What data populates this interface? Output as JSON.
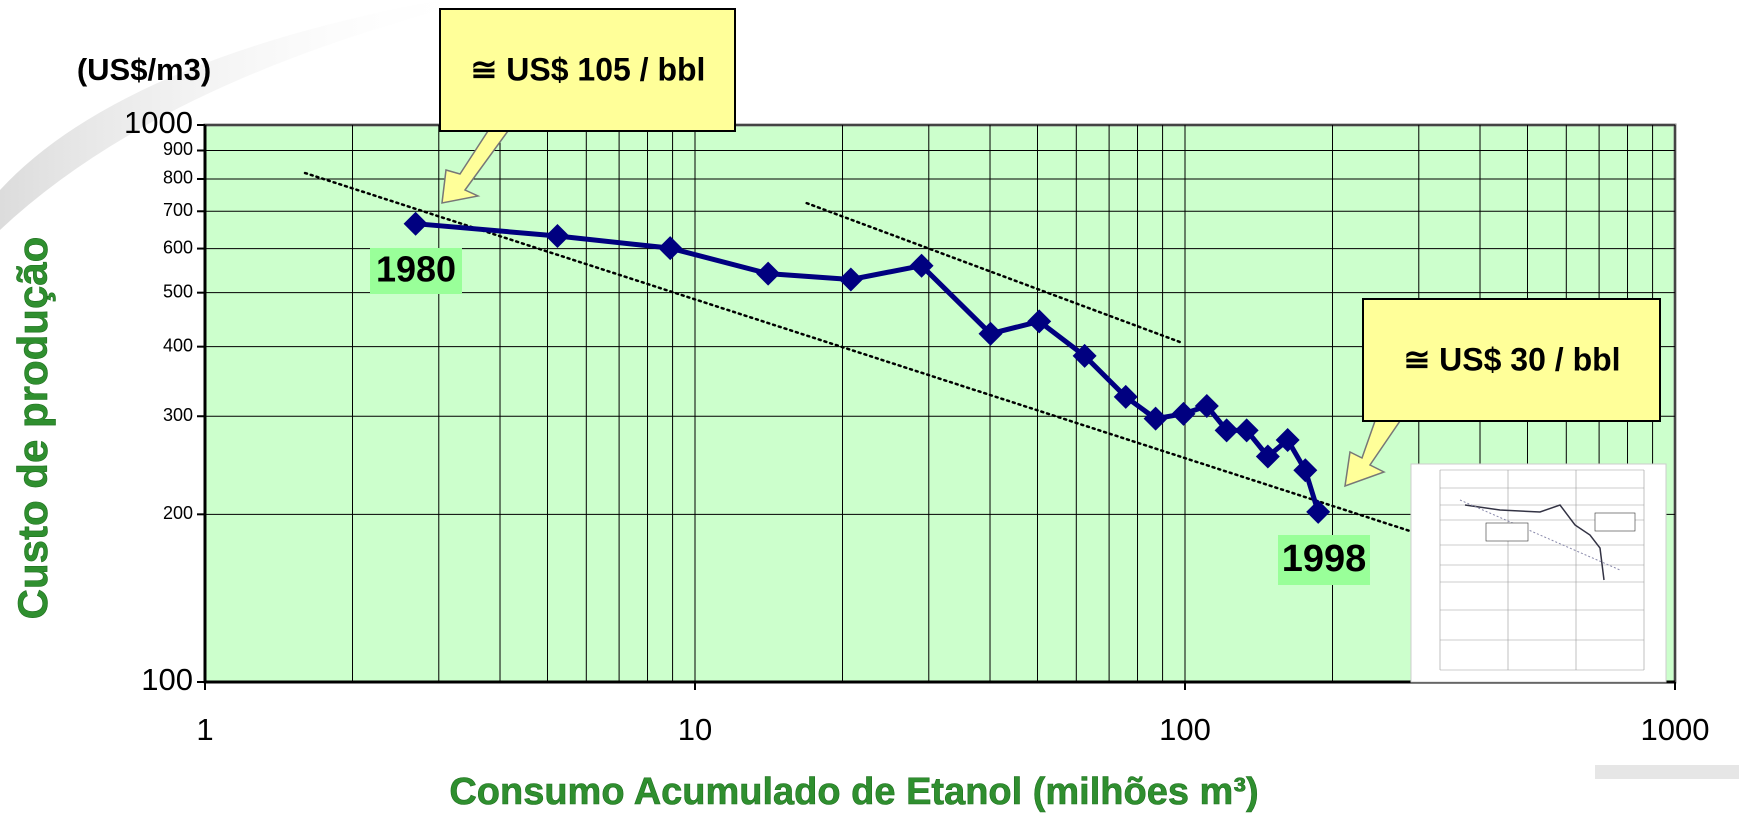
{
  "chart_data": {
    "type": "line",
    "unit_label": "(US$/m3)",
    "x_label": "Consumo Acumulado de Etanol (milhões m³)",
    "y_label": "Custo de produção",
    "x": [
      2.69,
      5.24,
      8.9,
      14.1,
      20.8,
      29.0,
      40.1,
      50.4,
      62.4,
      75.7,
      87.1,
      99.3,
      110.8,
      121.6,
      133.6,
      147.6,
      162,
      176,
      187
    ],
    "values": [
      665,
      632,
      601,
      541,
      528,
      559,
      422,
      444,
      385,
      325,
      297,
      303,
      313,
      283,
      283,
      254,
      272,
      240,
      202
    ],
    "color": "#000080",
    "trendlines": [
      {
        "x": [
          1.6,
          286
        ],
        "y": [
          820,
          187
        ]
      },
      {
        "x": [
          16.9,
          98.2
        ],
        "y": [
          724,
          407
        ]
      }
    ],
    "xlim": [
      1,
      1000
    ],
    "ylim": [
      100,
      1000
    ],
    "xticks": [
      1,
      10,
      100,
      1000
    ],
    "yticks": [
      100,
      200,
      300,
      400,
      500,
      600,
      700,
      800,
      900,
      1000
    ],
    "xscale": "log",
    "yscale": "log",
    "grid": true,
    "annotations": [
      {
        "text": "≅ US$ 105 / bbl"
      },
      {
        "text": "≅ US$ 30 / bbl"
      },
      {
        "text": "1980"
      },
      {
        "text": "1998"
      }
    ]
  }
}
